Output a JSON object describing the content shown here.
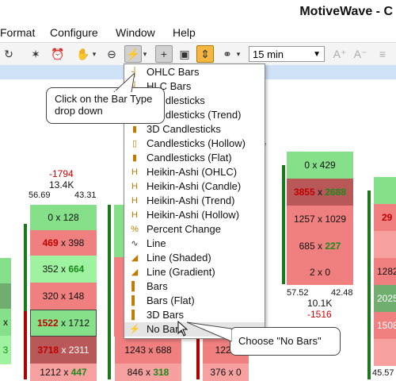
{
  "window": {
    "title": "MotiveWave - C"
  },
  "menu": [
    "Format",
    "Configure",
    "Window",
    "Help"
  ],
  "toolbar": {
    "timeframe": "15 min",
    "icons": [
      "undo-icon",
      "wand-icon",
      "alarm-clock-icon",
      "hand-icon",
      "zoom-out-icon",
      "bar-type-icon",
      "crosshair-icon",
      "cursor-tool-icon",
      "align-icon",
      "link-icon",
      "font-increase-icon",
      "font-decrease-icon",
      "list-icon"
    ]
  },
  "dropdown": {
    "items": [
      {
        "label": "OHLC Bars",
        "icon": "ohlc-bars-icon"
      },
      {
        "label": "HLC Bars",
        "icon": "hlc-bars-icon"
      },
      {
        "label": "Candlesticks",
        "icon": "candlesticks-icon"
      },
      {
        "label": "Candlesticks (Trend)",
        "icon": "candlesticks-trend-icon"
      },
      {
        "label": "3D Candlesticks",
        "icon": "3d-candlesticks-icon"
      },
      {
        "label": "Candlesticks (Hollow)",
        "icon": "candlesticks-hollow-icon"
      },
      {
        "label": "Candlesticks (Flat)",
        "icon": "candlesticks-flat-icon"
      },
      {
        "label": "Heikin-Ashi (OHLC)",
        "icon": "heikin-ashi-ohlc-icon"
      },
      {
        "label": "Heikin-Ashi (Candle)",
        "icon": "heikin-ashi-candle-icon"
      },
      {
        "label": "Heikin-Ashi (Trend)",
        "icon": "heikin-ashi-trend-icon"
      },
      {
        "label": "Heikin-Ashi (Hollow)",
        "icon": "heikin-ashi-hollow-icon"
      },
      {
        "label": "Percent Change",
        "icon": "percent-change-icon"
      },
      {
        "label": "Line",
        "icon": "line-icon"
      },
      {
        "label": "Line (Shaded)",
        "icon": "line-shaded-icon"
      },
      {
        "label": "Line (Gradient)",
        "icon": "line-gradient-icon"
      },
      {
        "label": "Bars",
        "icon": "bars-icon"
      },
      {
        "label": "Bars (Flat)",
        "icon": "bars-flat-icon"
      },
      {
        "label": "3D Bars",
        "icon": "3d-bars-icon"
      },
      {
        "label": "No Bars",
        "icon": "no-bars-icon"
      }
    ]
  },
  "callouts": {
    "bar_type": "Click on the Bar Type drop down",
    "no_bars": "Choose \"No Bars\""
  },
  "chart": {
    "col1": {
      "delta": "-1794",
      "volume": "13.4K",
      "low": "56.69",
      "high": "43.31",
      "cells": [
        "0 x 128",
        "469 x 398",
        "352 x 664",
        "320 x 148",
        "1522 x 1712",
        "3718 x 2311",
        "1212 x 447"
      ]
    },
    "col2": {
      "cells": [
        "1243 x 688",
        "846 x 318"
      ]
    },
    "col3": {
      "cells": [
        "1226",
        "376 x 0"
      ]
    },
    "col4": {
      "cells": [
        "0 x 429",
        "3855 x 2688",
        "1257 x 1029",
        "685 x 227",
        "2 x 0"
      ],
      "low": "57.52",
      "high": "42.48",
      "volume": "10.1K",
      "delta": "-1516"
    },
    "col5": {
      "cells": [
        "29",
        "",
        "1282",
        "2025",
        "1508",
        ""
      ],
      "bottom": "45.57"
    },
    "left_edge": [
      "x",
      "3"
    ]
  }
}
